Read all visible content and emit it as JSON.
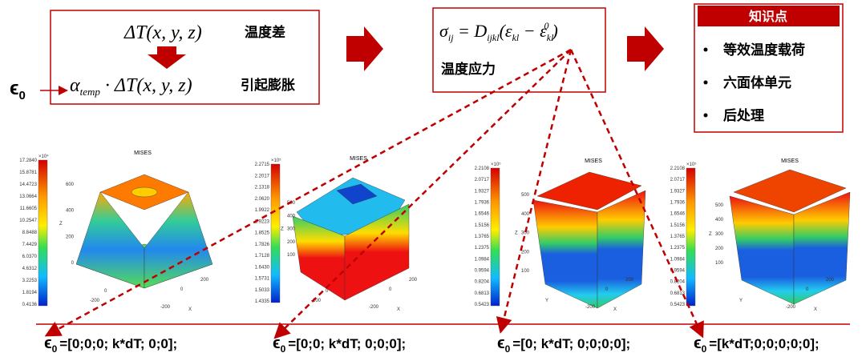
{
  "formula_box": {
    "delta_t": "ΔT(x, y, z)",
    "delta_t_label": "温度差",
    "alpha": "α",
    "alpha_sub": "temp",
    "alpha_rest": " · ΔT(x, y, z)",
    "alpha_label": "引起膨胀",
    "epsilon": "ϵ",
    "epsilon_sub": "0"
  },
  "stress_box": {
    "sigma": "σ",
    "sigma_sub": "ij",
    "eq": " = D",
    "d_sub": "ijkl",
    "open": "(ε",
    "kl_sub": "kl",
    "minus": " − ε",
    "kl_sub2": "kl",
    "kl_sup": "0",
    "close": ")",
    "label": "温度应力"
  },
  "knowledge_box": {
    "title": "知识点",
    "items": [
      "等效温度载荷",
      "六面体单元",
      "后处理"
    ]
  },
  "plots": [
    {
      "title": "MISES",
      "exponent": "×10⁴",
      "colorbar": [
        "17.2840",
        "15.8781",
        "14.4723",
        "13.0664",
        "11.6605",
        "10.2547",
        "8.8488",
        "7.4429",
        "6.0370",
        "4.6312",
        "3.2253",
        "1.8194",
        "0.4136"
      ],
      "z_label": "Z",
      "z_ticks": [
        "600",
        "400",
        "200",
        "0"
      ],
      "x_label": "X",
      "x_ticks": [
        "-200",
        "0",
        "200"
      ],
      "y_ticks": [
        "-200",
        "0"
      ]
    },
    {
      "title": "MISES",
      "exponent": "×10⁵",
      "colorbar": [
        "2.2715",
        "2.2017",
        "2.1318",
        "2.0620",
        "1.9922",
        "1.9223",
        "1.8525",
        "1.7826",
        "1.7128",
        "1.6430",
        "1.5731",
        "1.5033",
        "1.4335"
      ],
      "z_label": "Z",
      "z_ticks": [
        "500",
        "400",
        "300",
        "200",
        "100"
      ],
      "x_label": "X",
      "x_ticks": [
        "-200",
        "0",
        "200"
      ],
      "y_ticks": [
        "-200",
        "0"
      ]
    },
    {
      "title": "MISES",
      "exponent": "×10⁵",
      "colorbar": [
        "2.2108",
        "2.0717",
        "1.9327",
        "1.7936",
        "1.6546",
        "1.5156",
        "1.3765",
        "1.2375",
        "1.0984",
        "0.9594",
        "0.8204",
        "0.6813",
        "0.5423"
      ],
      "z_label": "Z",
      "z_ticks": [
        "500",
        "400",
        "300",
        "200",
        "100"
      ],
      "x_label": "X",
      "x_ticks": [
        "-200",
        "0",
        "200"
      ],
      "y_ticks": [
        "Y"
      ]
    },
    {
      "title": "MISES",
      "exponent": "×10⁵",
      "colorbar": [
        "2.2108",
        "2.0717",
        "1.9327",
        "1.7936",
        "1.6546",
        "1.5156",
        "1.3765",
        "1.2375",
        "1.0984",
        "0.9594",
        "0.8204",
        "0.6813",
        "0.5423"
      ],
      "z_label": "Z",
      "z_ticks": [
        "500",
        "400",
        "300",
        "200",
        "100"
      ],
      "x_label": "X",
      "x_ticks": [
        "-200",
        "0",
        "200"
      ],
      "y_ticks": [
        "Y"
      ]
    }
  ],
  "cases": [
    {
      "epsilon": "ϵ",
      "sub": "0",
      "vector": "=[0;0;0; k*dT; 0;0];"
    },
    {
      "epsilon": "ϵ",
      "sub": "0",
      "vector": "=[0;0; k*dT; 0;0;0];"
    },
    {
      "epsilon": "ϵ",
      "sub": "0",
      "vector": "=[0; k*dT; 0;0;0;0];"
    },
    {
      "epsilon": "ϵ",
      "sub": "0",
      "vector": "=[k*dT;0;0;0;0;0];"
    }
  ]
}
